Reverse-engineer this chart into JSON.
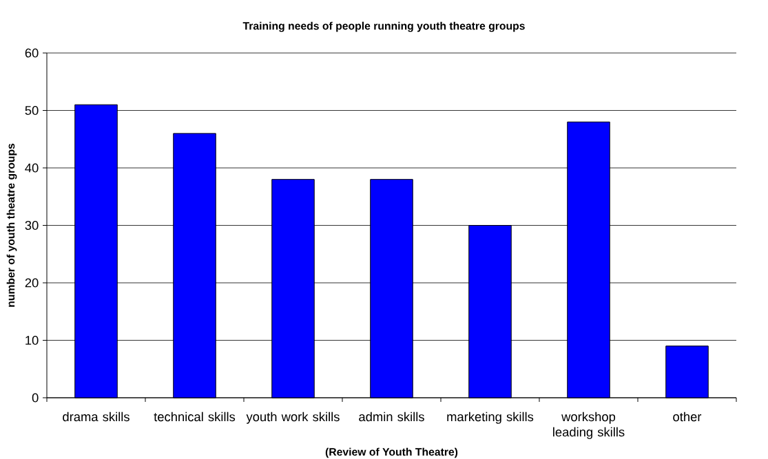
{
  "chart_data": {
    "type": "bar",
    "title": "Training needs of people running youth theatre groups",
    "xlabel": "(Review of Youth Theatre)",
    "ylabel": "number of youth theatre groups",
    "categories": [
      "drama skills",
      "technical skills",
      "youth work skills",
      "admin skills",
      "marketing skills",
      "workshop leading skills",
      "other"
    ],
    "values": [
      51,
      46,
      38,
      38,
      30,
      48,
      9
    ],
    "color": "#0000ff",
    "ylim": [
      0,
      60
    ],
    "yticks": [
      0,
      10,
      20,
      30,
      40,
      50,
      60
    ],
    "grid": "y"
  }
}
